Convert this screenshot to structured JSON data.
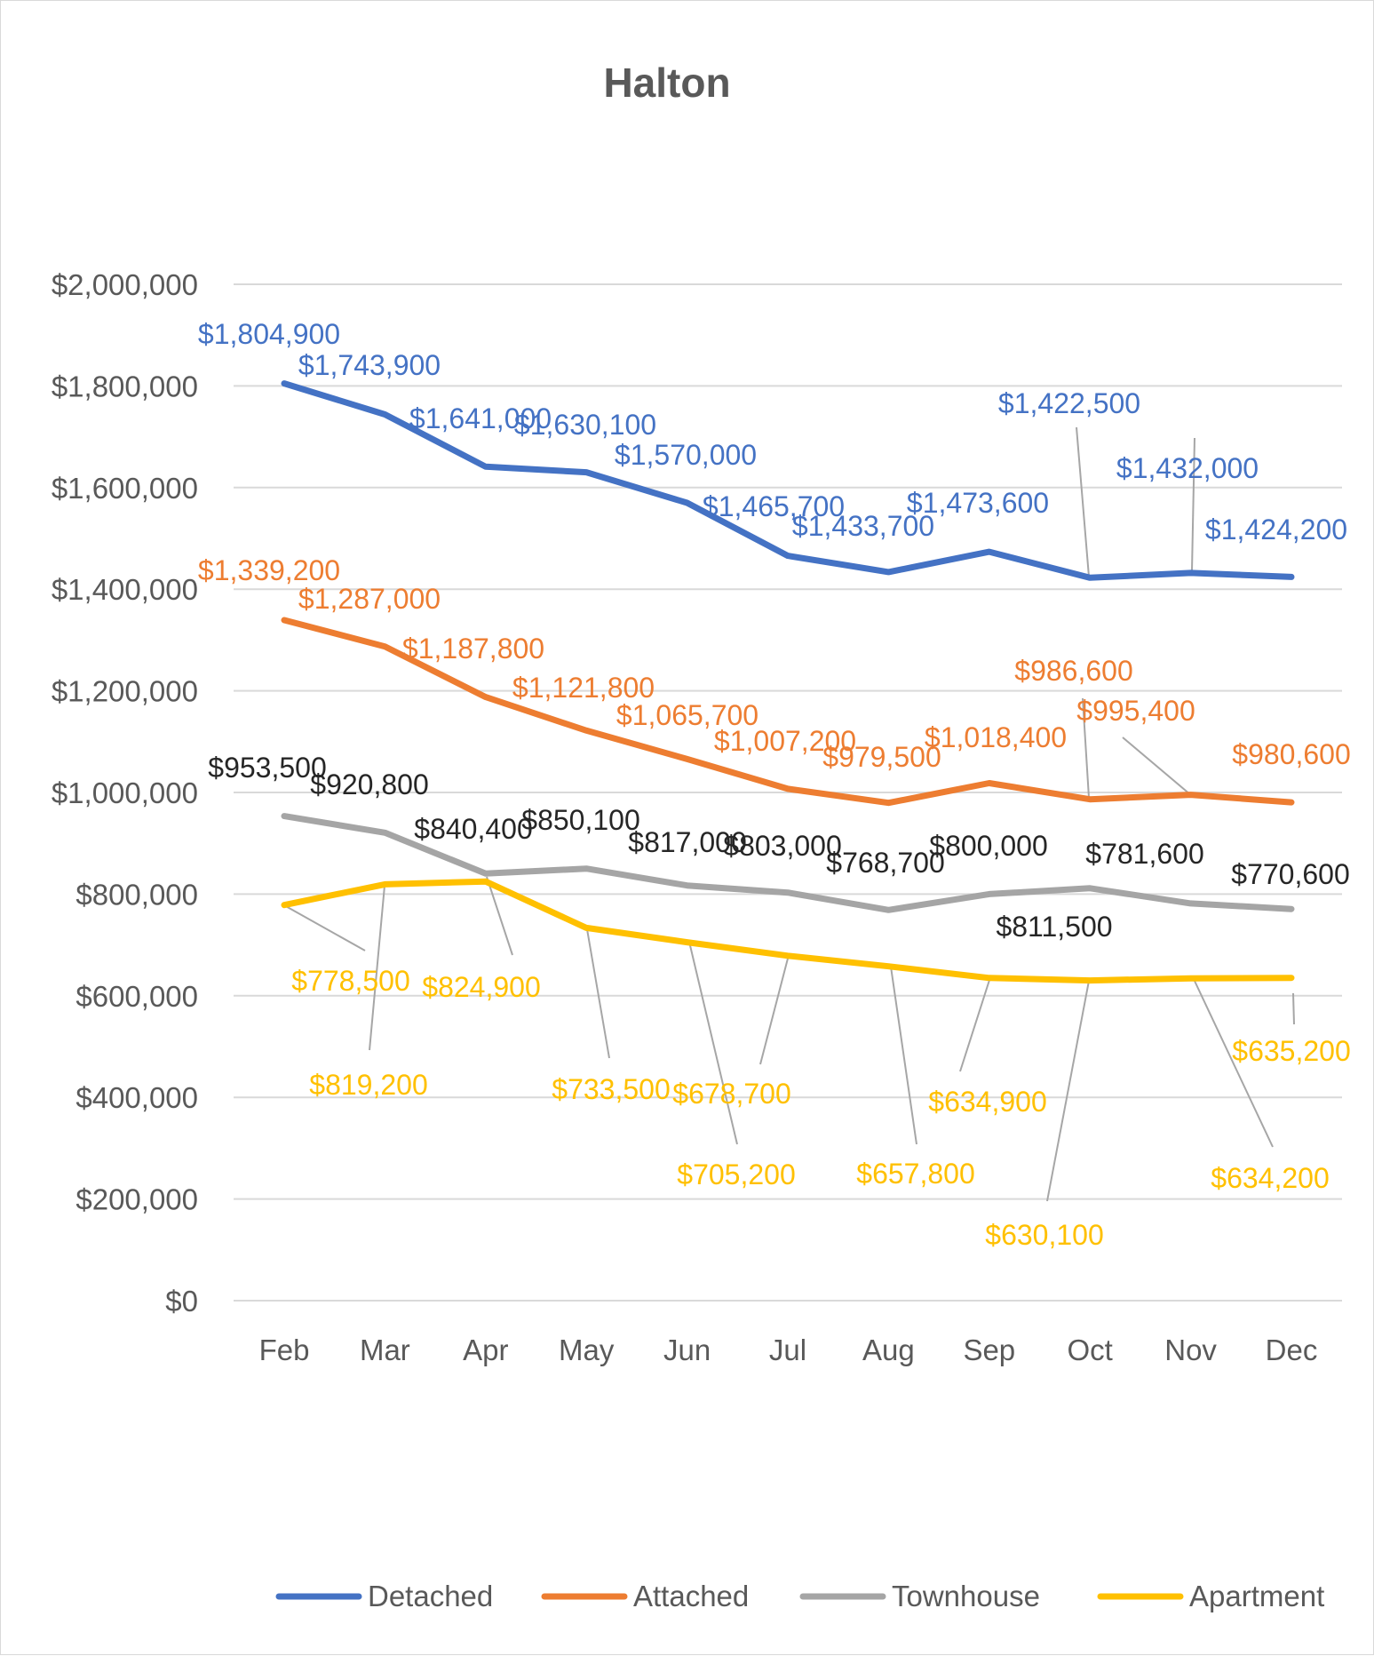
{
  "chart_data": {
    "type": "line",
    "title": "Halton",
    "xlabel": "",
    "ylabel": "",
    "categories": [
      "Feb",
      "Mar",
      "Apr",
      "May",
      "Jun",
      "Jul",
      "Aug",
      "Sep",
      "Oct",
      "Nov",
      "Dec"
    ],
    "ylim": [
      0,
      2000000
    ],
    "yticks": [
      0,
      200000,
      400000,
      600000,
      800000,
      1000000,
      1200000,
      1400000,
      1600000,
      1800000,
      2000000
    ],
    "ytick_labels": [
      "$0",
      "$200,000",
      "$400,000",
      "$600,000",
      "$800,000",
      "$1,000,000",
      "$1,200,000",
      "$1,400,000",
      "$1,600,000",
      "$1,800,000",
      "$2,000,000"
    ],
    "grid": true,
    "legend_position": "bottom",
    "series": [
      {
        "name": "Detached",
        "color": "#4472c4",
        "values": [
          1804900,
          1743900,
          1641000,
          1630100,
          1570000,
          1465700,
          1433700,
          1473600,
          1422500,
          1432000,
          1424200
        ],
        "labels": [
          "$1,804,900",
          "$1,743,900",
          "$1,641,000",
          "$1,630,100",
          "$1,570,000",
          "$1,465,700",
          "$1,433,700",
          "$1,473,600",
          "$1,422,500",
          "$1,432,000",
          "$1,424,200"
        ]
      },
      {
        "name": "Attached",
        "color": "#ed7d31",
        "values": [
          1339200,
          1287000,
          1187800,
          1121800,
          1065700,
          1007200,
          979500,
          1018400,
          986600,
          995400,
          980600
        ],
        "labels": [
          "$1,339,200",
          "$1,287,000",
          "$1,187,800",
          "$1,121,800",
          "$1,065,700",
          "$1,007,200",
          "$979,500",
          "$1,018,400",
          "$986,600",
          "$995,400",
          "$980,600"
        ]
      },
      {
        "name": "Townhouse",
        "color": "#a5a5a5",
        "label_color": "#262626",
        "values": [
          953500,
          920800,
          840400,
          850100,
          817000,
          803000,
          768700,
          800000,
          811500,
          781600,
          770600
        ],
        "labels": [
          "$953,500",
          "$920,800",
          "$840,400",
          "$850,100",
          "$817,000",
          "$803,000",
          "$768,700",
          "$800,000",
          "$811,500",
          "$781,600",
          "$770,600"
        ]
      },
      {
        "name": "Apartment",
        "color": "#ffc000",
        "values": [
          778500,
          819200,
          824900,
          733500,
          705200,
          678700,
          657800,
          634900,
          630100,
          634200,
          635200
        ],
        "labels": [
          "$778,500",
          "$819,200",
          "$824,900",
          "$733,500",
          "$705,200",
          "$678,700",
          "$657,800",
          "$634,900",
          "$630,100",
          "$634,200",
          "$635,200"
        ]
      }
    ]
  }
}
